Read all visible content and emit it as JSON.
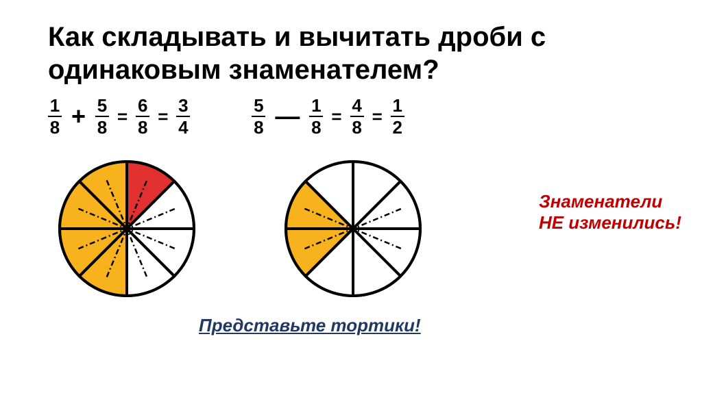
{
  "title_line1": "Как складывать и вычитать дроби с",
  "title_line2": "одинаковым знаменателем?",
  "equation1": {
    "f1": {
      "num": "1",
      "den": "8"
    },
    "op": "+",
    "f2": {
      "num": "5",
      "den": "8"
    },
    "r1": {
      "num": "6",
      "den": "8"
    },
    "r2": {
      "num": "3",
      "den": "4"
    }
  },
  "equation2": {
    "f1": {
      "num": "5",
      "den": "8"
    },
    "op": "—",
    "f2": {
      "num": "1",
      "den": "8"
    },
    "r1": {
      "num": "4",
      "den": "8"
    },
    "r2": {
      "num": "1",
      "den": "2"
    }
  },
  "pie1": {
    "slices": 8,
    "radius": 98,
    "stroke_width": 4,
    "stroke_color": "#000000",
    "colors": [
      "#e03030",
      "#ffffff",
      "#ffffff",
      "#ffffff",
      "#f7b21e",
      "#f7b21e",
      "#f7b21e",
      "#f7b21e"
    ],
    "dashed_pairs": [
      [
        4,
        0
      ],
      [
        5,
        1
      ],
      [
        6,
        2
      ],
      [
        7,
        3
      ]
    ]
  },
  "pie2": {
    "slices": 8,
    "radius": 98,
    "stroke_width": 4,
    "stroke_color": "#000000",
    "colors": [
      "#ffffff",
      "#ffffff",
      "#ffffff",
      "#ffffff",
      "#ffffff",
      "#f7b21e",
      "#f7b21e",
      "#ffffff"
    ],
    "dashed_pairs": [
      [
        5,
        1
      ],
      [
        6,
        2
      ]
    ]
  },
  "note_line1": "Знаменатели",
  "note_line2": "НЕ изменились!",
  "prompt_text": "Представьте тортики!",
  "colors": {
    "title": "#000000",
    "note": "#c00000",
    "prompt": "#203864",
    "yellow": "#f7b21e",
    "red": "#e03030",
    "white": "#ffffff",
    "dash": "#000000"
  },
  "fonts": {
    "title_size": 40,
    "equation_size": 28,
    "note_size": 26,
    "prompt_size": 26
  }
}
